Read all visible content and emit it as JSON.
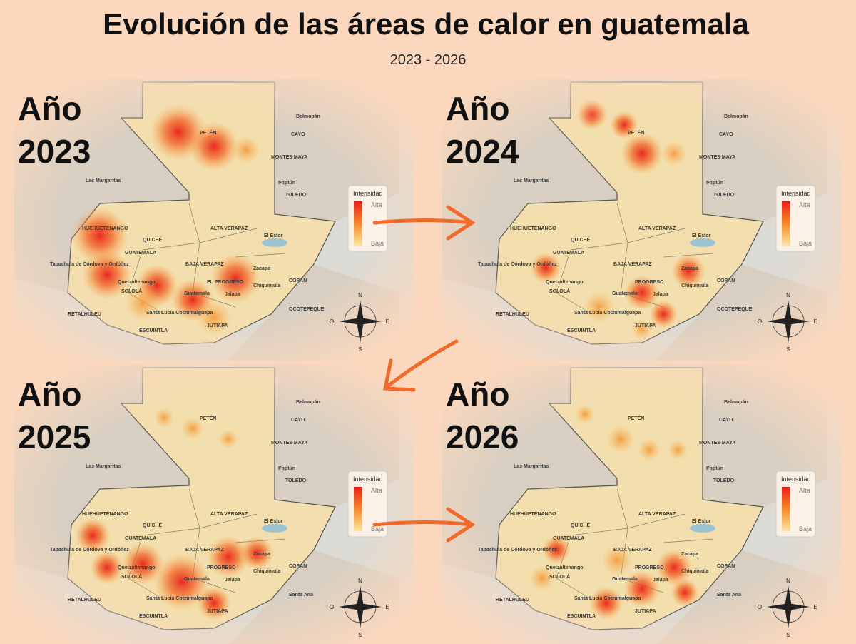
{
  "header": {
    "title": "Evolución de las áreas de calor en guatemala",
    "subtitle": "2023 - 2026"
  },
  "panels": [
    {
      "year_word": "Año",
      "year": "2023",
      "legend": {
        "title": "Intensidad",
        "high": "Alta",
        "low": "Baja"
      },
      "compass": {
        "n": "N",
        "s": "S",
        "e": "E",
        "o": "O"
      },
      "places": [
        "PETÉN",
        "Belmopán",
        "CAYO",
        "MONTES MAYA",
        "Poptún",
        "TOLEDO",
        "Las Margaritas",
        "HUEHUETENANGO",
        "ALTA VERAPAZ",
        "El Estor",
        "QUICHÉ",
        "GUATEMALA",
        "Tapachula de Córdova y Ordóñez",
        "Quetzaltenango",
        "SOLOLÁ",
        "BAJA VERAPAZ",
        "EL PROGRESO",
        "Zacapa",
        "Chiquimula",
        "Guatemala",
        "Jalapa",
        "COPÁN",
        "RETALHULEU",
        "Santa Lucía Cotzumalguapa",
        "ESCUINTLA",
        "JUTIAPA",
        "OCOTEPEQUE"
      ]
    },
    {
      "year_word": "Año",
      "year": "2024",
      "legend": {
        "title": "Intensidad",
        "high": "Alta",
        "low": "Baja"
      },
      "compass": {
        "n": "N",
        "s": "S",
        "e": "E",
        "o": "O"
      },
      "places": [
        "PETÉN",
        "Belmopán",
        "CAYO",
        "MONTES MAYA",
        "Poptún",
        "TOLEDO",
        "Las Margaritas",
        "HUEHUETENANGO",
        "ALTA VERAPAZ",
        "El Estor",
        "QUICHÉ",
        "GUATEMALA",
        "Tapachula de Córdova y Ordóñez",
        "Quetzaltenango",
        "SOLOLÁ",
        "BAJA VERAPAZ",
        "PROGRESO",
        "Zacapa",
        "Chiquimula",
        "Guatemala",
        "Jalapa",
        "COPÁN",
        "RETALHULEU",
        "Santa Lucía Cotzumalguapa",
        "ESCUINTLA",
        "JUTIAPA",
        "OCOTEPEQUE"
      ]
    },
    {
      "year_word": "Año",
      "year": "2025",
      "legend": {
        "title": "Intensidad",
        "high": "Alta",
        "low": "Baja"
      },
      "compass": {
        "n": "N",
        "s": "S",
        "e": "E",
        "o": "O"
      },
      "places": [
        "PETÉN",
        "Belmopán",
        "CAYO",
        "MONTES MAYA",
        "Poptún",
        "TOLEDO",
        "Las Margaritas",
        "HUEHUETENANGO",
        "ALTA VERAPAZ",
        "El Estor",
        "QUICHÉ",
        "GUATEMALA",
        "Tapachula de Córdova y Ordóñez",
        "Quetzaltenango",
        "SOLOLÁ",
        "BAJA VERAPAZ",
        "PROGRESO",
        "Zacapa",
        "Chiquimula",
        "Guatemala",
        "Jalapa",
        "COPÁN",
        "RETALHULEU",
        "Santa Lucía Cotzumalguapa",
        "ESCUINTLA",
        "JUTIAPA",
        "Santa Ana"
      ]
    },
    {
      "year_word": "Año",
      "year": "2026",
      "legend": {
        "title": "Intensidad",
        "high": "Alta",
        "low": "Baja"
      },
      "compass": {
        "n": "N",
        "s": "S",
        "e": "E",
        "o": "O"
      },
      "places": [
        "PETÉN",
        "Belmopán",
        "CAYO",
        "MONTES MAYA",
        "Poptún",
        "TOLEDO",
        "Las Margaritas",
        "HUEHUETENANGO",
        "ALTA VERAPAZ",
        "El Estor",
        "QUICHÉ",
        "GUATEMALA",
        "Tapachula de Córdova y Ordóñez",
        "Quetzaltenango",
        "SOLOLÁ",
        "BAJA VERAPAZ",
        "PROGRESO",
        "Zacapa",
        "Chiquimula",
        "Guatemala",
        "Jalapa",
        "COPÁN",
        "RETALHULEU",
        "Santa Lucía Cotzumalguapa",
        "ESCUINTLA",
        "JUTIAPA",
        "Santa Ana"
      ]
    }
  ]
}
